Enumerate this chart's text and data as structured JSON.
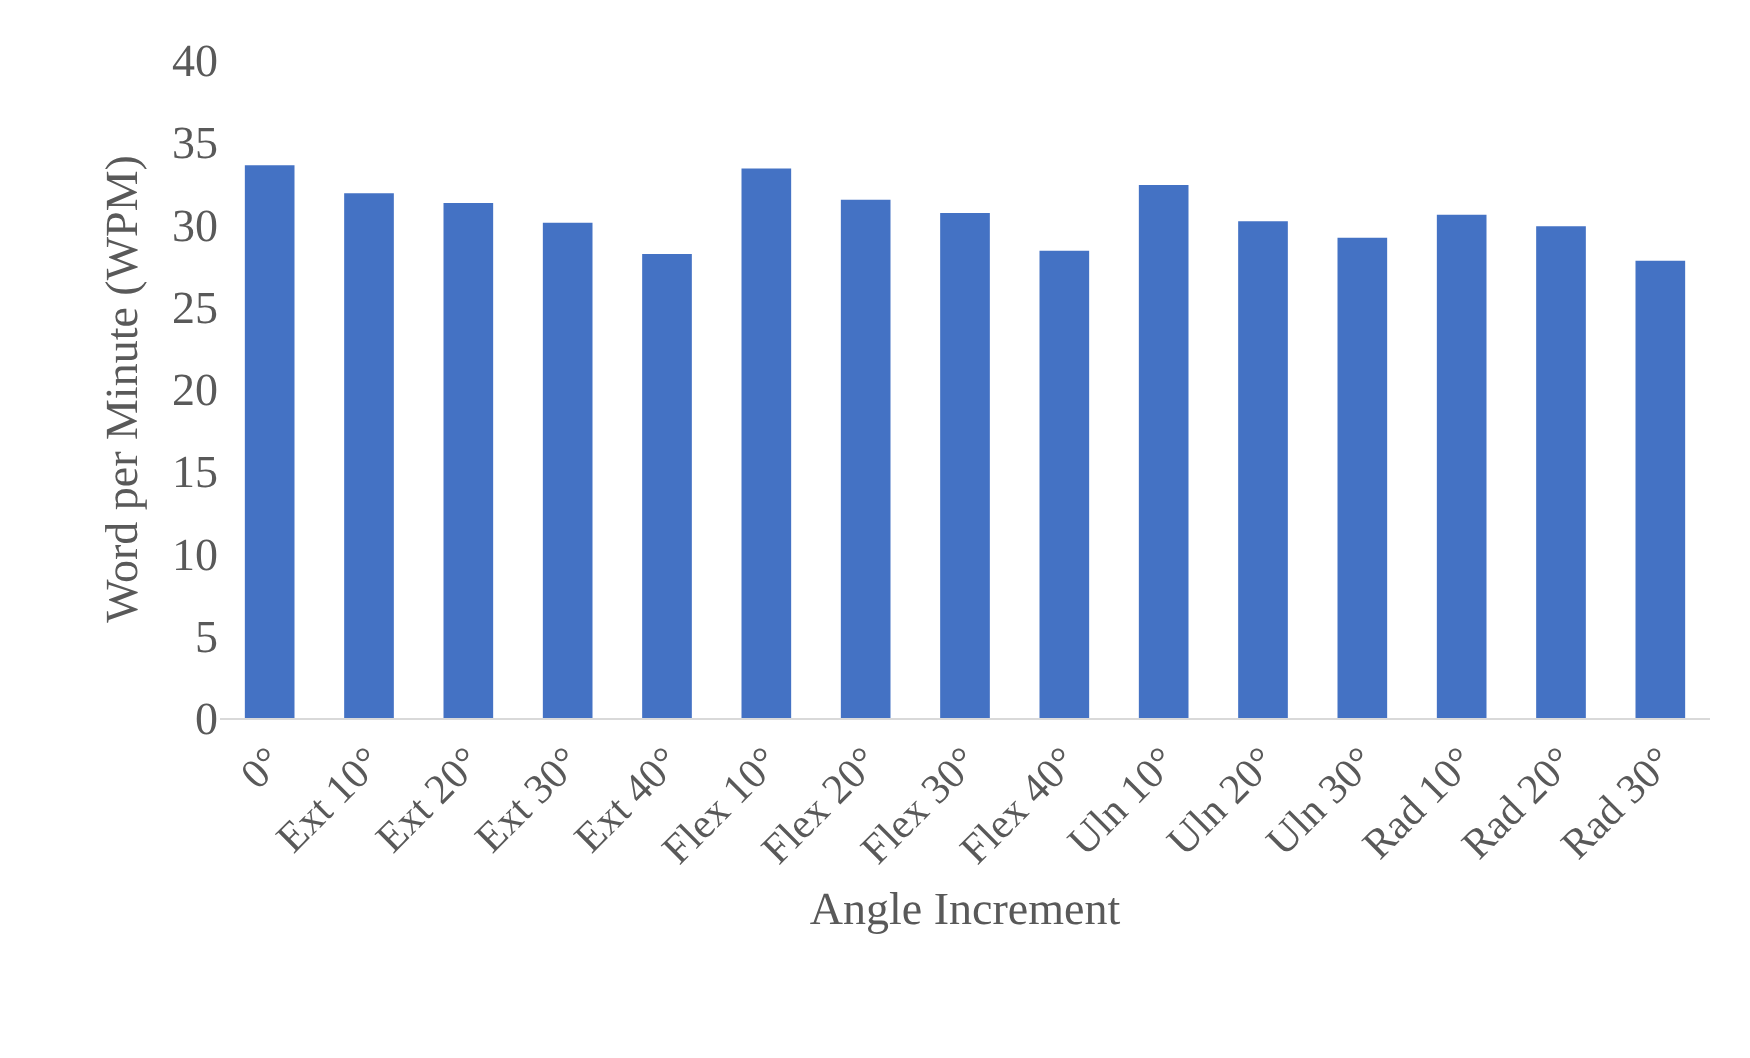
{
  "chart_data": {
    "type": "bar",
    "xlabel": "Angle Increment",
    "ylabel": "Word per Minute (WPM)",
    "categories": [
      "0°",
      "Ext 10°",
      "Ext 20°",
      "Ext 30°",
      "Ext 40°",
      "Flex 10°",
      "Flex 20°",
      "Flex 30°",
      "Flex 40°",
      "Uln 10°",
      "Uln 20°",
      "Uln 30°",
      "Rad 10°",
      "Rad 20°",
      "Rad 30°"
    ],
    "values": [
      33.6,
      31.9,
      31.3,
      30.1,
      28.2,
      33.4,
      31.5,
      30.7,
      28.4,
      32.4,
      30.2,
      29.2,
      30.6,
      29.9,
      27.8
    ],
    "color": "#4472c4",
    "ylim": [
      0,
      40
    ],
    "yticks": [
      0,
      5,
      10,
      15,
      20,
      25,
      30,
      35,
      40
    ],
    "grid": false,
    "legend": false
  }
}
